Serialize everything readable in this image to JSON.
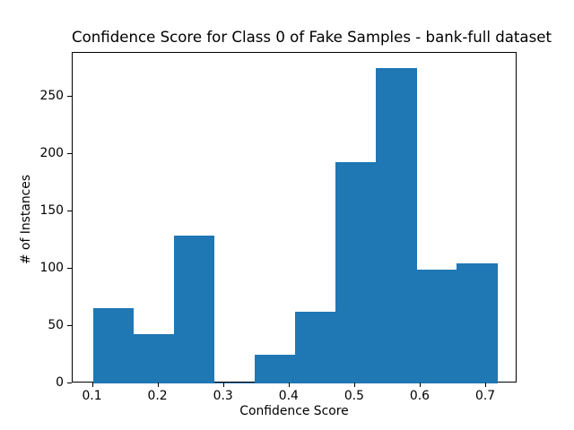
{
  "chart_data": {
    "type": "bar",
    "subtype": "histogram",
    "title": "Confidence Score for Class 0 of Fake Samples - bank-full dataset",
    "xlabel": "Confidence Score",
    "ylabel": "# of Instances",
    "bin_edges": [
      0.1,
      0.1617,
      0.2234,
      0.2851,
      0.3468,
      0.4085,
      0.4702,
      0.5319,
      0.5936,
      0.6553,
      0.717
    ],
    "values": [
      66,
      43,
      129,
      1,
      25,
      63,
      193,
      275,
      99,
      105
    ],
    "bar_color": "#1f77b4",
    "axis_color": "#000000",
    "background_color": "#ffffff",
    "xlim": [
      0.0692,
      0.7478
    ],
    "ylim": [
      0,
      288.75
    ],
    "xticks": [
      0.1,
      0.2,
      0.3,
      0.4,
      0.5,
      0.6,
      0.7
    ],
    "xtick_labels": [
      "0.1",
      "0.2",
      "0.3",
      "0.4",
      "0.5",
      "0.6",
      "0.7"
    ],
    "yticks": [
      0,
      50,
      100,
      150,
      200,
      250
    ],
    "ytick_labels": [
      "0",
      "50",
      "100",
      "150",
      "200",
      "250"
    ],
    "grid": false,
    "legend": null
  }
}
